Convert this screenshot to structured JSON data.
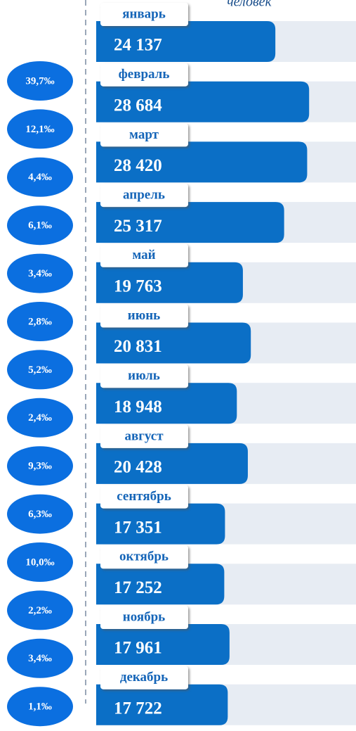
{
  "chart_data": {
    "type": "bar",
    "subtitle": "человек",
    "categories": [
      "январь",
      "февраль",
      "март",
      "апрель",
      "май",
      "июнь",
      "июль",
      "август",
      "сентябрь",
      "октябрь",
      "ноябрь",
      "декабрь"
    ],
    "values": [
      24137,
      28684,
      28420,
      25317,
      19763,
      20831,
      18948,
      20428,
      17351,
      17252,
      17961,
      17722
    ],
    "value_labels": [
      "24 137",
      "28 684",
      "28 420",
      "25 317",
      "19 763",
      "20 831",
      "18 948",
      "20 428",
      "17 351",
      "17 252",
      "17 961",
      "17 722"
    ],
    "xlim": [
      0,
      35000
    ],
    "color": "#0b6fc6",
    "rates": [
      "39,7‰",
      "12,1‰",
      "4,4‰",
      "6,1‰",
      "3,4‰",
      "2,8‰",
      "5,2‰",
      "2,4‰",
      "9,3‰",
      "6,3‰",
      "10,0‰",
      "2,2‰",
      "3,4‰",
      "1,1‰"
    ]
  }
}
